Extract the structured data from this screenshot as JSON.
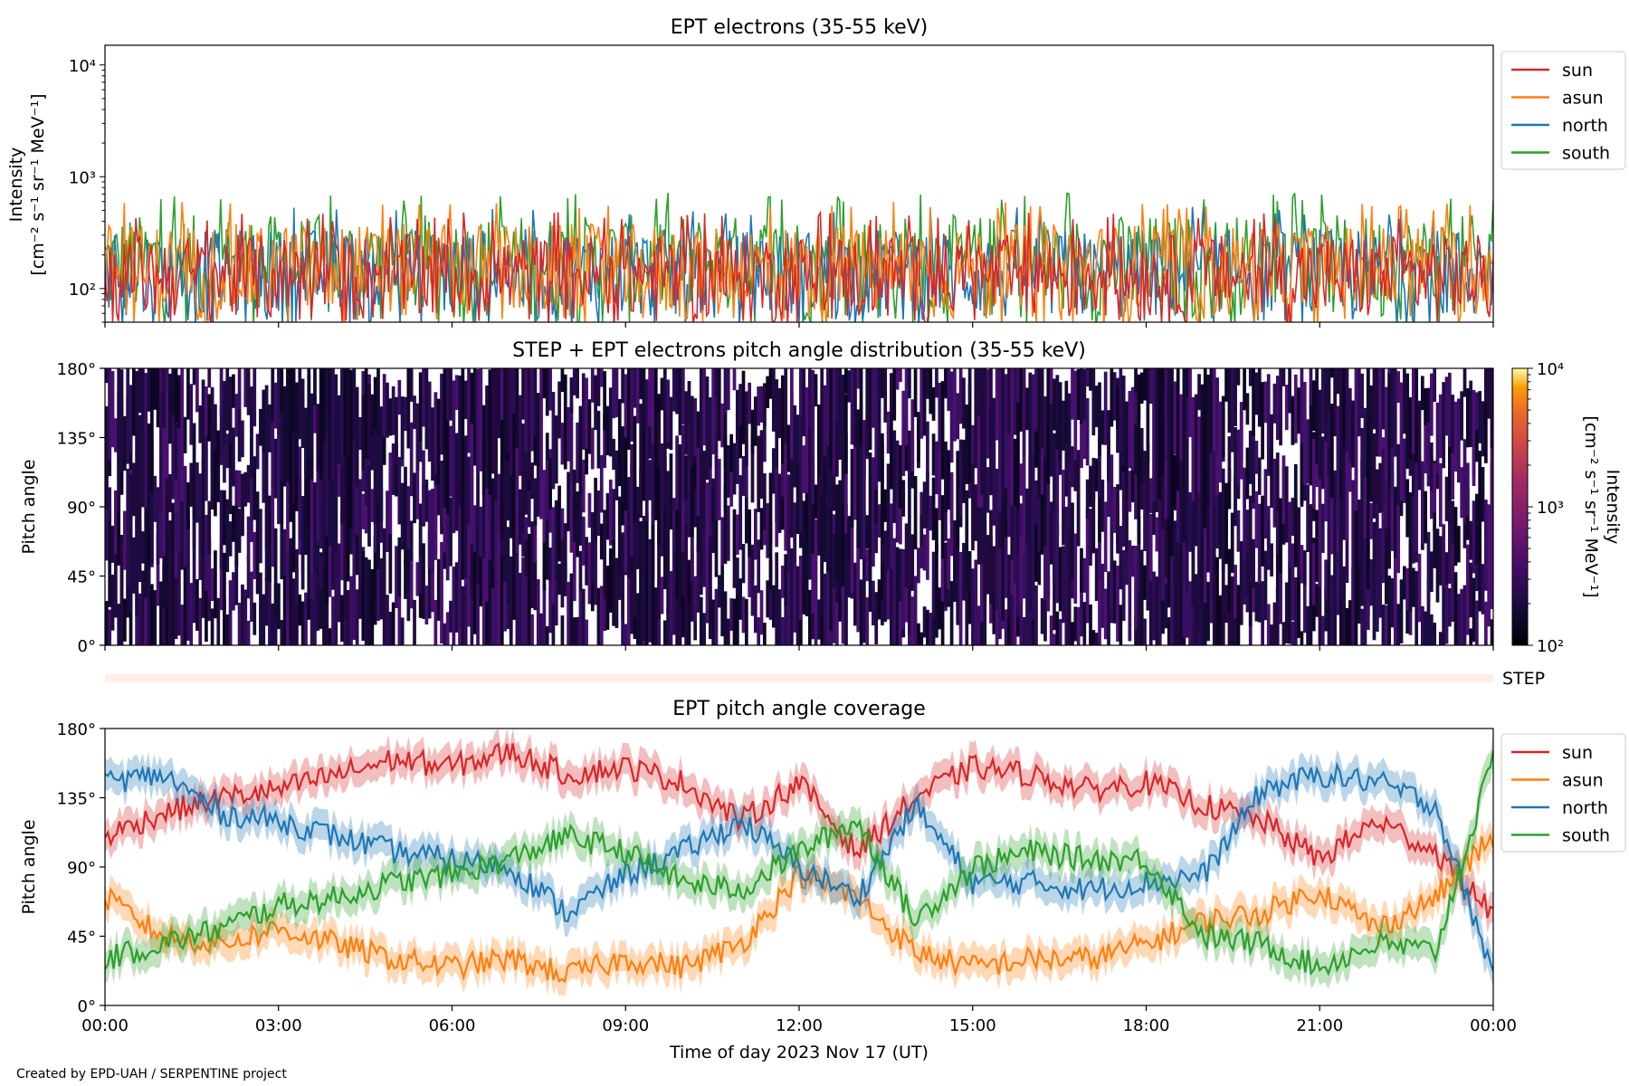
{
  "credit": "Created by EPD-UAH / SERPENTINE project",
  "x_axis": {
    "label": "Time of day 2023 Nov 17 (UT)",
    "ticks": [
      "00:00",
      "03:00",
      "06:00",
      "09:00",
      "12:00",
      "15:00",
      "18:00",
      "21:00",
      "00:00"
    ]
  },
  "colors": {
    "sun": "#d62728",
    "asun": "#ff7f0e",
    "north": "#1f77b4",
    "south": "#2ca02c"
  },
  "chart_data": [
    {
      "type": "line",
      "title": "EPT electrons (35-55 keV)",
      "ylabel_line1": "Intensity",
      "ylabel_line2": "[cm⁻² s⁻¹ sr⁻¹ MeV⁻¹]",
      "yscale": "log",
      "ylim": [
        50,
        15000
      ],
      "yticks": [
        {
          "value": 100,
          "label": "10²"
        },
        {
          "value": 1000,
          "label": "10³"
        },
        {
          "value": 10000,
          "label": "10⁴"
        }
      ],
      "xlim_hours": [
        0,
        24
      ],
      "legend": "outside-right",
      "series": [
        {
          "name": "sun",
          "typical_range": [
            50,
            400
          ]
        },
        {
          "name": "asun",
          "typical_range": [
            50,
            500
          ]
        },
        {
          "name": "north",
          "typical_range": [
            50,
            450
          ]
        },
        {
          "name": "south",
          "typical_range": [
            50,
            600
          ]
        }
      ]
    },
    {
      "type": "heatmap",
      "title": "STEP + EPT electrons pitch angle distribution (35-55 keV)",
      "ylabel": "Pitch angle",
      "ylim": [
        0,
        180
      ],
      "yticks": [
        "0°",
        "45°",
        "90°",
        "135°",
        "180°"
      ],
      "colorbar": {
        "label_line1": "Intensity",
        "label_line2": "[cm⁻² s⁻¹ sr⁻¹ MeV⁻¹]",
        "scale": "log",
        "range": [
          100,
          10000
        ],
        "ticks": [
          "10²",
          "10³",
          "10⁴"
        ]
      },
      "step_label": "STEP"
    },
    {
      "type": "line",
      "title": "EPT pitch angle coverage",
      "ylabel": "Pitch angle",
      "ylim": [
        0,
        180
      ],
      "yticks": [
        "0°",
        "45°",
        "90°",
        "135°",
        "180°"
      ],
      "legend": "outside-right",
      "series": [
        {
          "name": "sun",
          "x_hours": [
            0,
            1,
            2,
            3,
            4,
            5,
            6,
            7,
            8,
            9,
            10,
            11,
            12,
            13,
            14,
            15,
            16,
            17,
            18,
            19,
            20,
            21,
            22,
            23,
            24
          ],
          "values": [
            110,
            125,
            135,
            140,
            150,
            160,
            155,
            165,
            150,
            155,
            145,
            120,
            145,
            100,
            135,
            155,
            150,
            140,
            145,
            130,
            120,
            95,
            120,
            100,
            60
          ]
        },
        {
          "name": "asun",
          "x_hours": [
            0,
            1,
            2,
            3,
            4,
            5,
            6,
            7,
            8,
            9,
            10,
            11,
            12,
            13,
            14,
            15,
            16,
            17,
            18,
            19,
            20,
            21,
            22,
            23,
            24
          ],
          "values": [
            70,
            45,
            40,
            50,
            40,
            30,
            25,
            30,
            20,
            30,
            25,
            40,
            85,
            70,
            35,
            25,
            30,
            30,
            40,
            55,
            60,
            75,
            50,
            70,
            110
          ]
        },
        {
          "name": "north",
          "x_hours": [
            0,
            1,
            2,
            3,
            4,
            5,
            6,
            7,
            8,
            9,
            10,
            11,
            12,
            13,
            14,
            15,
            16,
            17,
            18,
            19,
            20,
            21,
            22,
            23,
            24
          ],
          "values": [
            145,
            150,
            125,
            120,
            110,
            100,
            95,
            90,
            60,
            85,
            100,
            120,
            90,
            70,
            130,
            80,
            80,
            75,
            80,
            85,
            140,
            150,
            145,
            130,
            20
          ]
        },
        {
          "name": "south",
          "x_hours": [
            0,
            1,
            2,
            3,
            4,
            5,
            6,
            7,
            8,
            9,
            10,
            11,
            12,
            13,
            14,
            15,
            16,
            17,
            18,
            19,
            20,
            21,
            22,
            23,
            24
          ],
          "values": [
            30,
            40,
            50,
            65,
            70,
            80,
            85,
            95,
            110,
            100,
            80,
            75,
            100,
            120,
            55,
            90,
            100,
            95,
            95,
            45,
            40,
            25,
            40,
            35,
            160
          ]
        }
      ]
    }
  ]
}
